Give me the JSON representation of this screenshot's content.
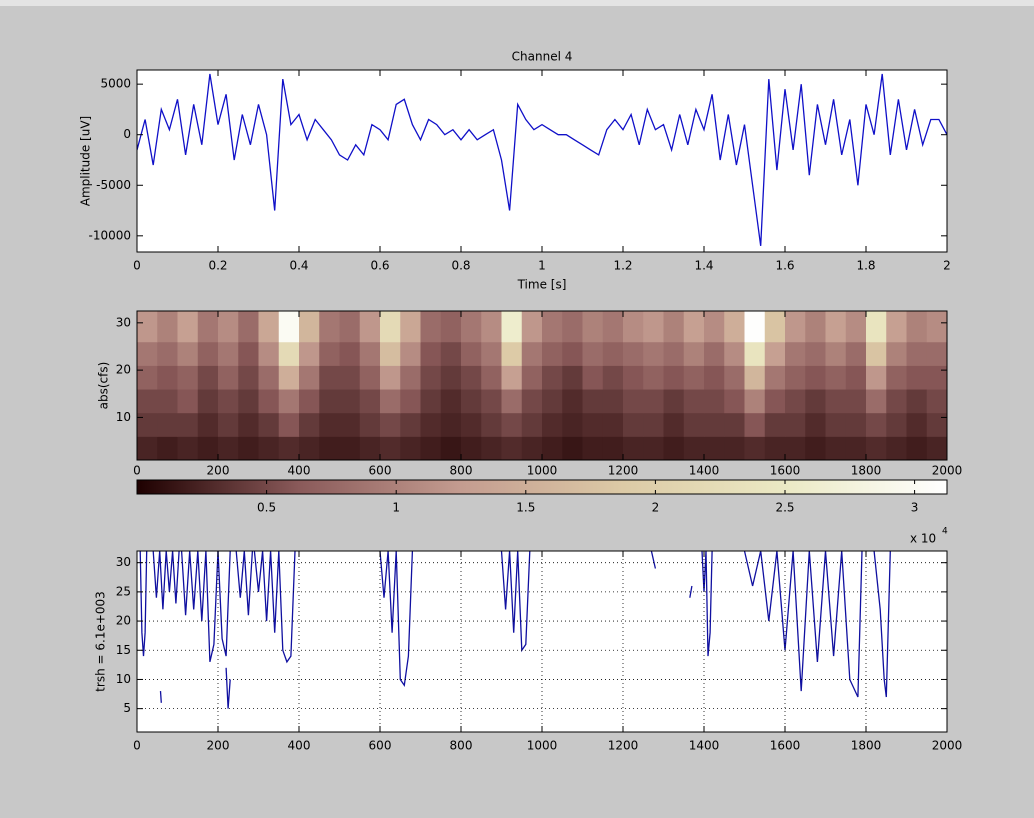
{
  "chart_data": [
    {
      "type": "line",
      "title": "Channel 4",
      "xlabel": "Time [s]",
      "ylabel": "Amplitude [uV]",
      "x": [
        0,
        0.02,
        0.04,
        0.06,
        0.08,
        0.1,
        0.12,
        0.14,
        0.16,
        0.18,
        0.2,
        0.22,
        0.24,
        0.26,
        0.28,
        0.3,
        0.32,
        0.34,
        0.36,
        0.38,
        0.4,
        0.42,
        0.44,
        0.46,
        0.48,
        0.5,
        0.52,
        0.54,
        0.56,
        0.58,
        0.6,
        0.62,
        0.64,
        0.66,
        0.68,
        0.7,
        0.72,
        0.74,
        0.76,
        0.78,
        0.8,
        0.82,
        0.84,
        0.86,
        0.88,
        0.9,
        0.92,
        0.94,
        0.96,
        0.98,
        1,
        1.02,
        1.04,
        1.06,
        1.08,
        1.1,
        1.12,
        1.14,
        1.16,
        1.18,
        1.2,
        1.22,
        1.24,
        1.26,
        1.28,
        1.3,
        1.32,
        1.34,
        1.36,
        1.38,
        1.4,
        1.42,
        1.44,
        1.46,
        1.48,
        1.5,
        1.52,
        1.54,
        1.56,
        1.58,
        1.6,
        1.62,
        1.64,
        1.66,
        1.68,
        1.7,
        1.72,
        1.74,
        1.76,
        1.78,
        1.8,
        1.82,
        1.84,
        1.86,
        1.88,
        1.9,
        1.92,
        1.94,
        1.96,
        1.98,
        2
      ],
      "series": [
        {
          "color": "#1010c8",
          "values": [
            -1500,
            1500,
            -3000,
            2500,
            500,
            3500,
            -2000,
            3000,
            -1000,
            6000,
            1000,
            4000,
            -2500,
            2000,
            -1000,
            3000,
            0,
            -7500,
            5500,
            1000,
            2000,
            -500,
            1500,
            500,
            -500,
            -2000,
            -2500,
            -1000,
            -2000,
            1000,
            500,
            -500,
            3000,
            3500,
            1000,
            -500,
            1500,
            1000,
            0,
            500,
            -500,
            500,
            -500,
            0,
            500,
            -2500,
            -7500,
            3000,
            1500,
            500,
            1000,
            500,
            0,
            0,
            -500,
            -1000,
            -1500,
            -2000,
            500,
            1500,
            500,
            2000,
            -1000,
            2500,
            500,
            1000,
            -1500,
            2000,
            -1000,
            2500,
            500,
            4000,
            -2500,
            2000,
            -3000,
            1000,
            -5000,
            -11000,
            5500,
            -3500,
            4500,
            -1500,
            5000,
            -4000,
            3000,
            -1000,
            3500,
            -2000,
            1500,
            -5000,
            3000,
            0,
            6000,
            -2000,
            3500,
            -1500,
            2500,
            -1000,
            1500,
            1500,
            0
          ]
        }
      ],
      "xlim": [
        0,
        2
      ],
      "ylim": [
        -11600,
        6400
      ],
      "xticks": [
        0,
        0.2,
        0.4,
        0.6,
        0.8,
        1,
        1.2,
        1.4,
        1.6,
        1.8,
        2
      ],
      "yticks": [
        -10000,
        -5000,
        0,
        5000
      ],
      "grid": false
    },
    {
      "type": "heatmap",
      "ylabel": "abs(cfs)",
      "xbins": [
        0,
        50,
        100,
        150,
        200,
        250,
        300,
        350,
        400,
        450,
        500,
        550,
        600,
        650,
        700,
        750,
        800,
        850,
        900,
        950,
        1000,
        1050,
        1100,
        1150,
        1200,
        1250,
        1300,
        1350,
        1400,
        1450,
        1500,
        1550,
        1600,
        1650,
        1700,
        1750,
        1800,
        1850,
        1900,
        1950,
        2000
      ],
      "ybins": [
        1,
        6,
        11,
        16,
        21,
        26,
        32.5
      ],
      "values": [
        [
          2500,
          2000,
          2500,
          2000,
          2500,
          2000,
          2500,
          3000,
          2500,
          2000,
          2000,
          2500,
          3000,
          2500,
          2000,
          1500,
          2000,
          2500,
          3000,
          2500,
          2000,
          1500,
          2000,
          2000,
          2500,
          2500,
          2000,
          2500,
          2500,
          2500,
          3000,
          2500,
          2500,
          2000,
          2500,
          2500,
          3000,
          2500,
          2000,
          2500
        ],
        [
          4000,
          4000,
          4000,
          3000,
          4000,
          3000,
          4000,
          6000,
          4000,
          3000,
          3000,
          4000,
          5000,
          4000,
          3000,
          2500,
          3000,
          4000,
          5000,
          4000,
          3000,
          2500,
          3000,
          3000,
          4000,
          4000,
          3000,
          4000,
          4000,
          4000,
          6000,
          4000,
          4000,
          3000,
          4000,
          4000,
          5000,
          4000,
          3000,
          4000
        ],
        [
          5000,
          5000,
          6000,
          4000,
          5000,
          4000,
          6000,
          9000,
          6000,
          4000,
          4000,
          5000,
          8000,
          6000,
          4000,
          3000,
          4000,
          5000,
          8000,
          5000,
          4000,
          3000,
          4000,
          4000,
          5000,
          5000,
          4000,
          5000,
          5000,
          6000,
          10000,
          6000,
          5000,
          4000,
          5000,
          5000,
          8000,
          5000,
          4000,
          5000
        ],
        [
          7000,
          6000,
          7000,
          5000,
          7000,
          5000,
          8000,
          15000,
          9000,
          5000,
          5000,
          7000,
          12000,
          8000,
          5000,
          4000,
          5000,
          7000,
          13000,
          7000,
          5000,
          4000,
          6000,
          5000,
          6000,
          7000,
          6000,
          7000,
          6000,
          8000,
          16000,
          9000,
          7000,
          6000,
          7000,
          6000,
          12000,
          7000,
          6000,
          6000
        ],
        [
          9000,
          8000,
          10000,
          7000,
          9000,
          6000,
          11000,
          22000,
          12000,
          7000,
          6000,
          9000,
          17000,
          11000,
          6000,
          5000,
          7000,
          9000,
          19000,
          9000,
          7000,
          6000,
          8000,
          7000,
          8000,
          9000,
          8000,
          10000,
          8000,
          11000,
          24000,
          13000,
          9000,
          8000,
          10000,
          8000,
          18000,
          10000,
          8000,
          8000
        ],
        [
          12000,
          10000,
          13000,
          9000,
          11000,
          8000,
          14000,
          30000,
          16000,
          9000,
          8000,
          12000,
          22000,
          14000,
          8000,
          7000,
          9000,
          11000,
          26000,
          12000,
          9000,
          8000,
          10000,
          9000,
          11000,
          12000,
          10000,
          13000,
          11000,
          15000,
          31000,
          18000,
          12000,
          10000,
          13000,
          11000,
          24000,
          13000,
          10000,
          11000
        ]
      ],
      "clim": [
        0,
        31250
      ],
      "colormap": [
        "#1e0000",
        "#8a5a5a",
        "#c49c90",
        "#dccaa6",
        "#ebe9c4",
        "#ffffff"
      ],
      "colorbar_ticks": [
        {
          "value": 5000,
          "label": "0.5"
        },
        {
          "value": 10000,
          "label": "1"
        },
        {
          "value": 15000,
          "label": "1.5"
        },
        {
          "value": 20000,
          "label": "2"
        },
        {
          "value": 25000,
          "label": "2.5"
        },
        {
          "value": 30000,
          "label": "3"
        }
      ],
      "colorbar_multiplier": "x 10",
      "colorbar_exponent": "4",
      "xlim": [
        0,
        2000
      ],
      "ylim": [
        1,
        32.5
      ],
      "xticks": [
        0,
        200,
        400,
        600,
        800,
        1000,
        1200,
        1400,
        1600,
        1800,
        2000
      ],
      "yticks": [
        10,
        20,
        30
      ],
      "grid": false
    },
    {
      "type": "contour",
      "ylabel": "trsh = 6.1e+003",
      "series": [
        {
          "color": "#1010a0",
          "x": [
            8,
            12,
            16,
            20,
            24
          ],
          "values": [
            32,
            18,
            14,
            18,
            32
          ]
        },
        {
          "color": "#1010a0",
          "x": [
            58,
            60
          ],
          "values": [
            8,
            6
          ]
        },
        {
          "color": "#1010a0",
          "x": [
            40,
            48,
            56,
            64,
            72,
            80,
            88,
            96,
            104
          ],
          "values": [
            32,
            24,
            32,
            22,
            32,
            25,
            32,
            23,
            32
          ]
        },
        {
          "color": "#1010a0",
          "x": [
            110,
            120,
            130,
            140,
            150,
            160,
            170,
            180,
            190,
            200
          ],
          "values": [
            32,
            21,
            32,
            22,
            32,
            20,
            32,
            13,
            16,
            32
          ]
        },
        {
          "color": "#1010a0",
          "x": [
            200,
            210,
            220,
            230
          ],
          "values": [
            32,
            17,
            14,
            32
          ]
        },
        {
          "color": "#1010a0",
          "x": [
            220,
            225,
            230
          ],
          "values": [
            12,
            5,
            10
          ]
        },
        {
          "color": "#1010a0",
          "x": [
            245,
            255,
            265,
            275,
            285
          ],
          "values": [
            32,
            24,
            32,
            21,
            32
          ]
        },
        {
          "color": "#1010a0",
          "x": [
            290,
            300,
            310,
            320,
            330,
            340,
            350,
            360,
            370,
            380,
            390
          ],
          "values": [
            32,
            25,
            32,
            20,
            32,
            18,
            32,
            15,
            13,
            14,
            32
          ]
        },
        {
          "color": "#1010a0",
          "x": [
            600,
            610,
            620,
            630,
            640,
            650,
            660,
            670,
            680
          ],
          "values": [
            32,
            24,
            32,
            18,
            32,
            10,
            9,
            14,
            32
          ]
        },
        {
          "color": "#1010a0",
          "x": [
            900,
            910,
            920,
            930,
            940,
            950,
            960,
            970
          ],
          "values": [
            32,
            22,
            32,
            18,
            32,
            15,
            16,
            32
          ]
        },
        {
          "color": "#1010a0",
          "x": [
            1270,
            1280
          ],
          "values": [
            32,
            29
          ]
        },
        {
          "color": "#1010a0",
          "x": [
            1365,
            1370
          ],
          "values": [
            24,
            26
          ]
        },
        {
          "color": "#1010a0",
          "x": [
            1395,
            1400,
            1405,
            1410,
            1415,
            1420
          ],
          "values": [
            32,
            25,
            32,
            14,
            18,
            32
          ]
        },
        {
          "color": "#1010a0",
          "x": [
            1500,
            1520,
            1540,
            1560,
            1580,
            1600,
            1620,
            1640,
            1660,
            1680,
            1700,
            1720,
            1740,
            1760,
            1780,
            1790
          ],
          "values": [
            32,
            26,
            32,
            20,
            32,
            15,
            32,
            8,
            32,
            13,
            32,
            14,
            32,
            10,
            7,
            32
          ]
        },
        {
          "color": "#1010a0",
          "x": [
            1820,
            1835,
            1845,
            1850,
            1860
          ],
          "values": [
            32,
            22,
            10,
            7,
            32
          ]
        }
      ],
      "xlim": [
        0,
        2000
      ],
      "ylim": [
        1,
        32
      ],
      "xticks": [
        0,
        200,
        400,
        600,
        800,
        1000,
        1200,
        1400,
        1600,
        1800,
        2000
      ],
      "yticks": [
        5,
        10,
        15,
        20,
        25,
        30
      ],
      "grid": true
    }
  ]
}
